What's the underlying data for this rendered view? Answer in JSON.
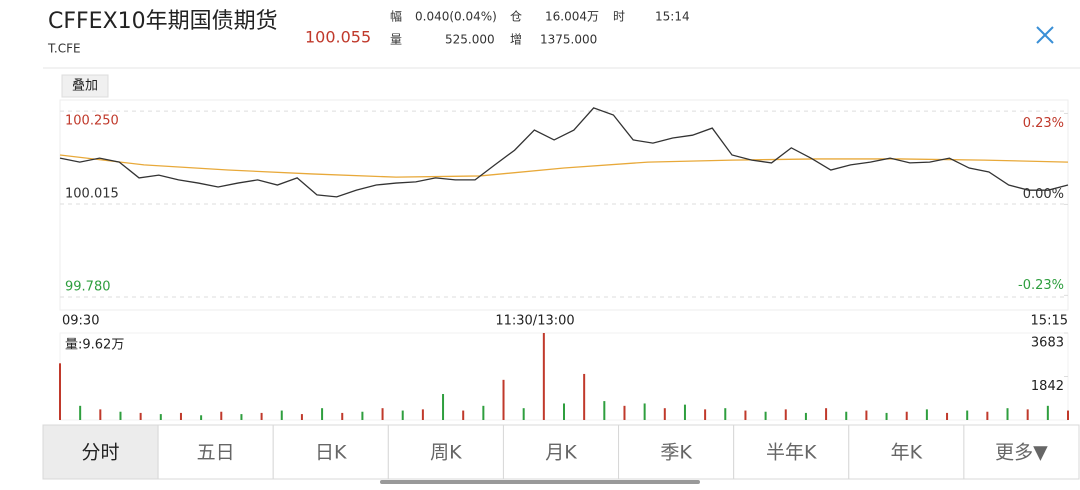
{
  "header": {
    "title": "CFFEX10年期国债期货",
    "code": "T.CFE",
    "price": "100.055",
    "stats": [
      {
        "label": "幅",
        "value": "0.040(0.04%)"
      },
      {
        "label": "仓",
        "value": "16.004万"
      },
      {
        "label": "时",
        "value": "15:14"
      },
      {
        "label": "量",
        "value": "525.000"
      },
      {
        "label": "增",
        "value": "1375.000"
      }
    ]
  },
  "overlay_button": "叠加",
  "chart_data": {
    "type": "line",
    "x_labels": [
      "09:30",
      "11:30/13:00",
      "15:15"
    ],
    "ylim": [
      99.747,
      100.278
    ],
    "yticks": [
      {
        "value": 100.25,
        "label": "100.250"
      },
      {
        "value": 100.015,
        "label": "100.015"
      },
      {
        "value": 99.78,
        "label": "99.780"
      }
    ],
    "y2lim": [
      -0.267,
      0.264
    ],
    "y2ticks": [
      {
        "value": 0.23,
        "label": "0.23%"
      },
      {
        "value": 0,
        "label": "0.00%"
      },
      {
        "value": -0.23,
        "label": "-0.23%"
      }
    ],
    "up_color": "#c0392b",
    "down_color": "#2e9e3e",
    "series": [
      {
        "color": "#333333",
        "values": [
          100.131,
          100.121,
          100.131,
          100.121,
          100.081,
          100.088,
          100.076,
          100.068,
          100.058,
          100.068,
          100.076,
          100.063,
          100.081,
          100.038,
          100.033,
          100.05,
          100.063,
          100.068,
          100.071,
          100.081,
          100.076,
          100.076,
          100.114,
          100.151,
          100.202,
          100.177,
          100.202,
          100.258,
          100.24,
          100.177,
          100.169,
          100.182,
          100.189,
          100.207,
          100.139,
          100.126,
          100.119,
          100.157,
          100.131,
          100.101,
          100.114,
          100.121,
          100.131,
          100.119,
          100.121,
          100.131,
          100.106,
          100.096,
          100.063,
          100.05,
          100.05,
          100.063
        ]
      },
      {
        "color": "#e8a93a",
        "values": [
          100.139,
          100.114,
          100.101,
          100.091,
          100.083,
          100.086,
          100.106,
          100.121,
          100.126,
          100.129,
          100.129,
          100.126,
          100.121
        ]
      }
    ],
    "volume": {
      "label": "量:9.62万",
      "ylim": [
        0,
        3683
      ],
      "yticks": [
        3683,
        1842
      ],
      "values": [
        2400,
        600,
        450,
        350,
        300,
        250,
        300,
        200,
        350,
        250,
        300,
        400,
        250,
        500,
        300,
        350,
        500,
        400,
        450,
        1100,
        400,
        600,
        1700,
        500,
        3683,
        700,
        1950,
        800,
        600,
        700,
        500,
        650,
        450,
        500,
        400,
        350,
        450,
        300,
        500,
        350,
        400,
        300,
        350,
        450,
        300,
        400,
        350,
        500,
        450,
        600,
        400
      ]
    }
  },
  "tabs": [
    "分时",
    "五日",
    "日K",
    "周K",
    "月K",
    "季K",
    "半年K",
    "年K",
    "更多▼"
  ],
  "selected_tab": 0
}
